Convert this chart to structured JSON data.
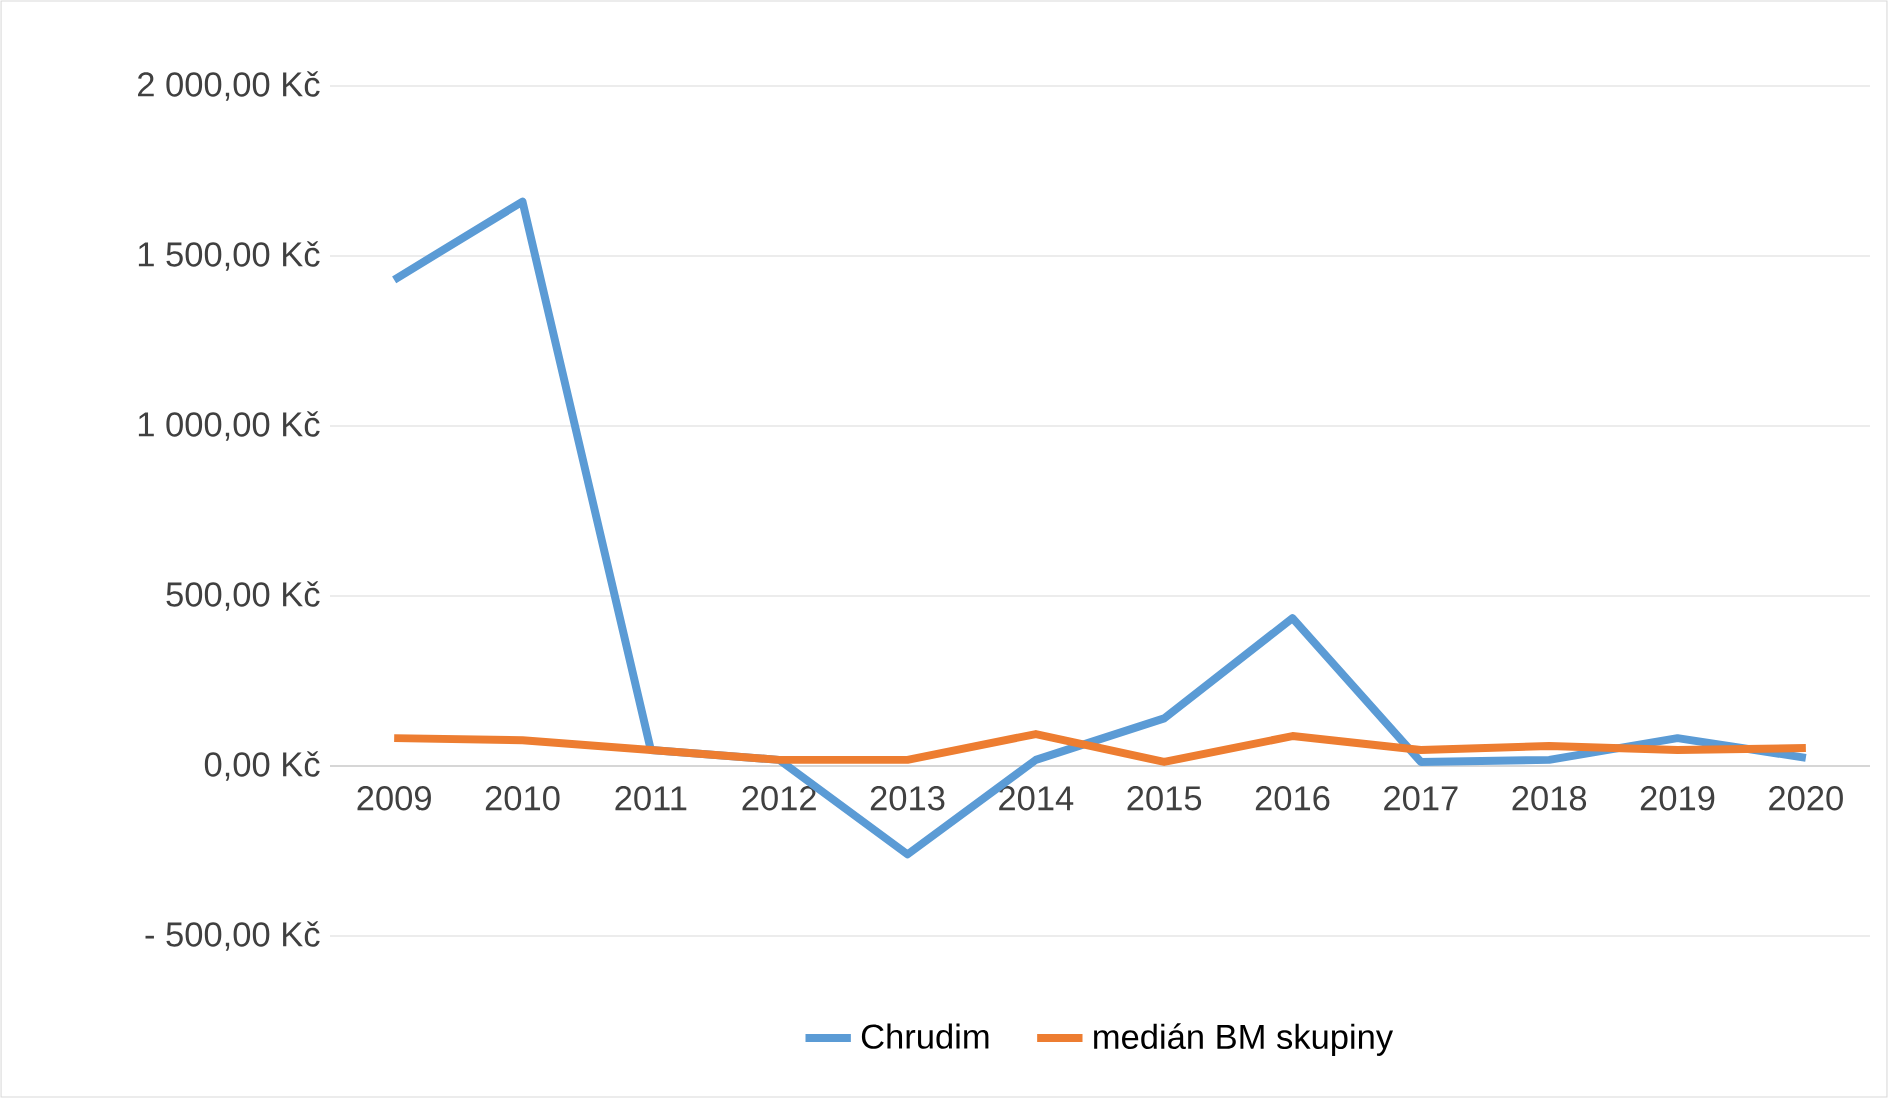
{
  "chart_data": {
    "type": "line",
    "categories": [
      "2009",
      "2010",
      "2011",
      "2012",
      "2013",
      "2014",
      "2015",
      "2016",
      "2017",
      "2018",
      "2019",
      "2020"
    ],
    "series": [
      {
        "name": "Chrudim",
        "color": "#5b9bd5",
        "values": [
          1430,
          1660,
          47,
          18,
          -260,
          18,
          140,
          435,
          12,
          18,
          82,
          24
        ]
      },
      {
        "name": "medián BM skupiny",
        "color": "#ed7d31",
        "values": [
          82,
          76,
          47,
          18,
          18,
          94,
          12,
          88,
          47,
          59,
          47,
          53
        ]
      }
    ],
    "ylim": [
      -500,
      2000
    ],
    "yticks": [
      {
        "value": -500,
        "label": "- 500,00 Kč"
      },
      {
        "value": 0,
        "label": "0,00 Kč"
      },
      {
        "value": 500,
        "label": "500,00 Kč"
      },
      {
        "value": 1000,
        "label": "1 000,00 Kč"
      },
      {
        "value": 1500,
        "label": "1 500,00 Kč"
      },
      {
        "value": 2000,
        "label": "2 000,00 Kč"
      }
    ],
    "grid": "y",
    "legend": "bottom",
    "marker": "none",
    "line_style": "solid"
  }
}
